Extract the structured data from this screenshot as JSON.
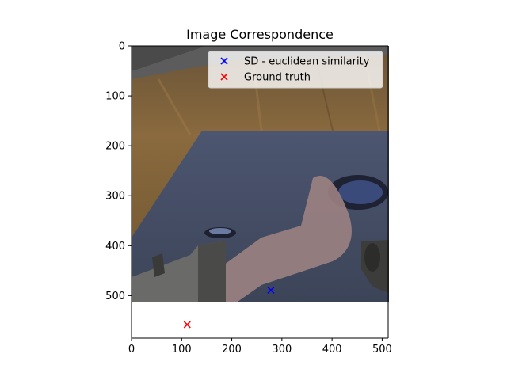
{
  "chart_data": {
    "type": "scatter",
    "title": "Image Correspondence",
    "xlabel": "",
    "ylabel": "",
    "xlim": [
      0,
      512
    ],
    "ylim": [
      585,
      0
    ],
    "xticks": [
      0,
      100,
      200,
      300,
      400,
      500
    ],
    "yticks": [
      0,
      100,
      200,
      300,
      400,
      500
    ],
    "background_image": {
      "description": "first-person robot gripper view over blue mat on wooden table",
      "extent_x": [
        0,
        512
      ],
      "extent_y": [
        512,
        0
      ]
    },
    "legend": "top-right",
    "series": [
      {
        "name": "SD - euclidean similarity",
        "color": "#0000ff",
        "marker": "x",
        "points": [
          [
            278,
            489
          ]
        ]
      },
      {
        "name": "Ground truth",
        "color": "#ff0000",
        "marker": "x",
        "points": [
          [
            111,
            558
          ]
        ]
      }
    ],
    "grid": false
  }
}
